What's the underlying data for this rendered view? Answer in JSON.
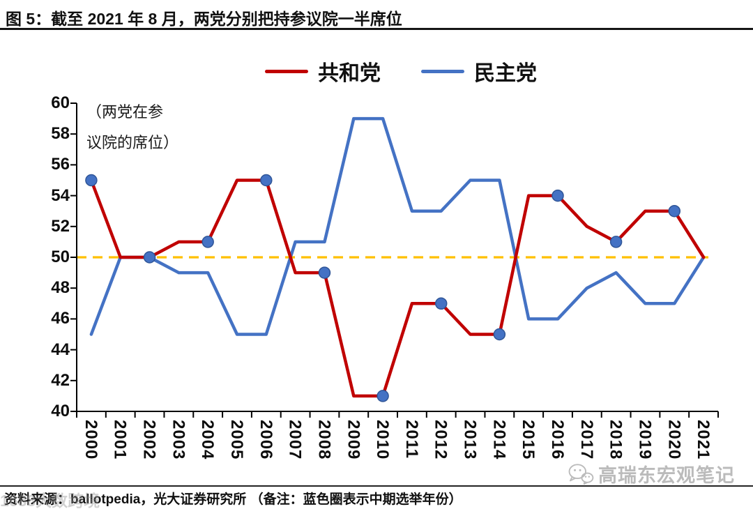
{
  "header": {
    "title": "图 5：截至 2021 年 8 月，两党分别把持参议院一半席位"
  },
  "legend": {
    "items": [
      {
        "label": "共和党",
        "color": "#C00000"
      },
      {
        "label": "民主党",
        "color": "#4472C4"
      }
    ]
  },
  "chart_data": {
    "type": "line",
    "title": "图 5：截至 2021 年 8 月，两党分别把持参议院一半席位",
    "x": [
      2000,
      2001,
      2002,
      2003,
      2004,
      2005,
      2006,
      2007,
      2008,
      2009,
      2010,
      2011,
      2012,
      2013,
      2014,
      2015,
      2016,
      2017,
      2018,
      2019,
      2020,
      2021
    ],
    "series": [
      {
        "name": "共和党",
        "color": "#C00000",
        "values": [
          55,
          50,
          50,
          51,
          51,
          55,
          55,
          49,
          49,
          41,
          41,
          47,
          47,
          45,
          45,
          54,
          54,
          52,
          51,
          53,
          53,
          50
        ]
      },
      {
        "name": "民主党",
        "color": "#4472C4",
        "values": [
          45,
          50,
          50,
          49,
          49,
          45,
          45,
          51,
          51,
          59,
          59,
          53,
          53,
          55,
          55,
          46,
          46,
          48,
          49,
          47,
          47,
          50
        ]
      }
    ],
    "markers": {
      "series": "共和党",
      "years": [
        2000,
        2002,
        2004,
        2006,
        2008,
        2010,
        2012,
        2014,
        2016,
        2018,
        2020
      ],
      "fill": "#4472C4",
      "edge": "#2F5597",
      "meaning": "蓝色圈表示中期选举年份"
    },
    "reference_line": {
      "value": 50,
      "color": "#FFC000",
      "style": "dashed"
    },
    "ylim": [
      40,
      60
    ],
    "yticks": [
      60,
      58,
      56,
      54,
      52,
      50,
      48,
      46,
      44,
      42,
      40
    ],
    "annotation_lines": [
      "（两党在参",
      "议院的席位）"
    ],
    "grid": false,
    "legend_position": "top-center",
    "axis_color": "#000000"
  },
  "footer": {
    "source": "资料来源：ballotpedia，光大证券研究所 （备注：蓝色圈表示中期选举年份）"
  },
  "watermarks": {
    "bottom_left": "1688大数跨境",
    "bottom_right": "高瑞东宏观笔记"
  }
}
